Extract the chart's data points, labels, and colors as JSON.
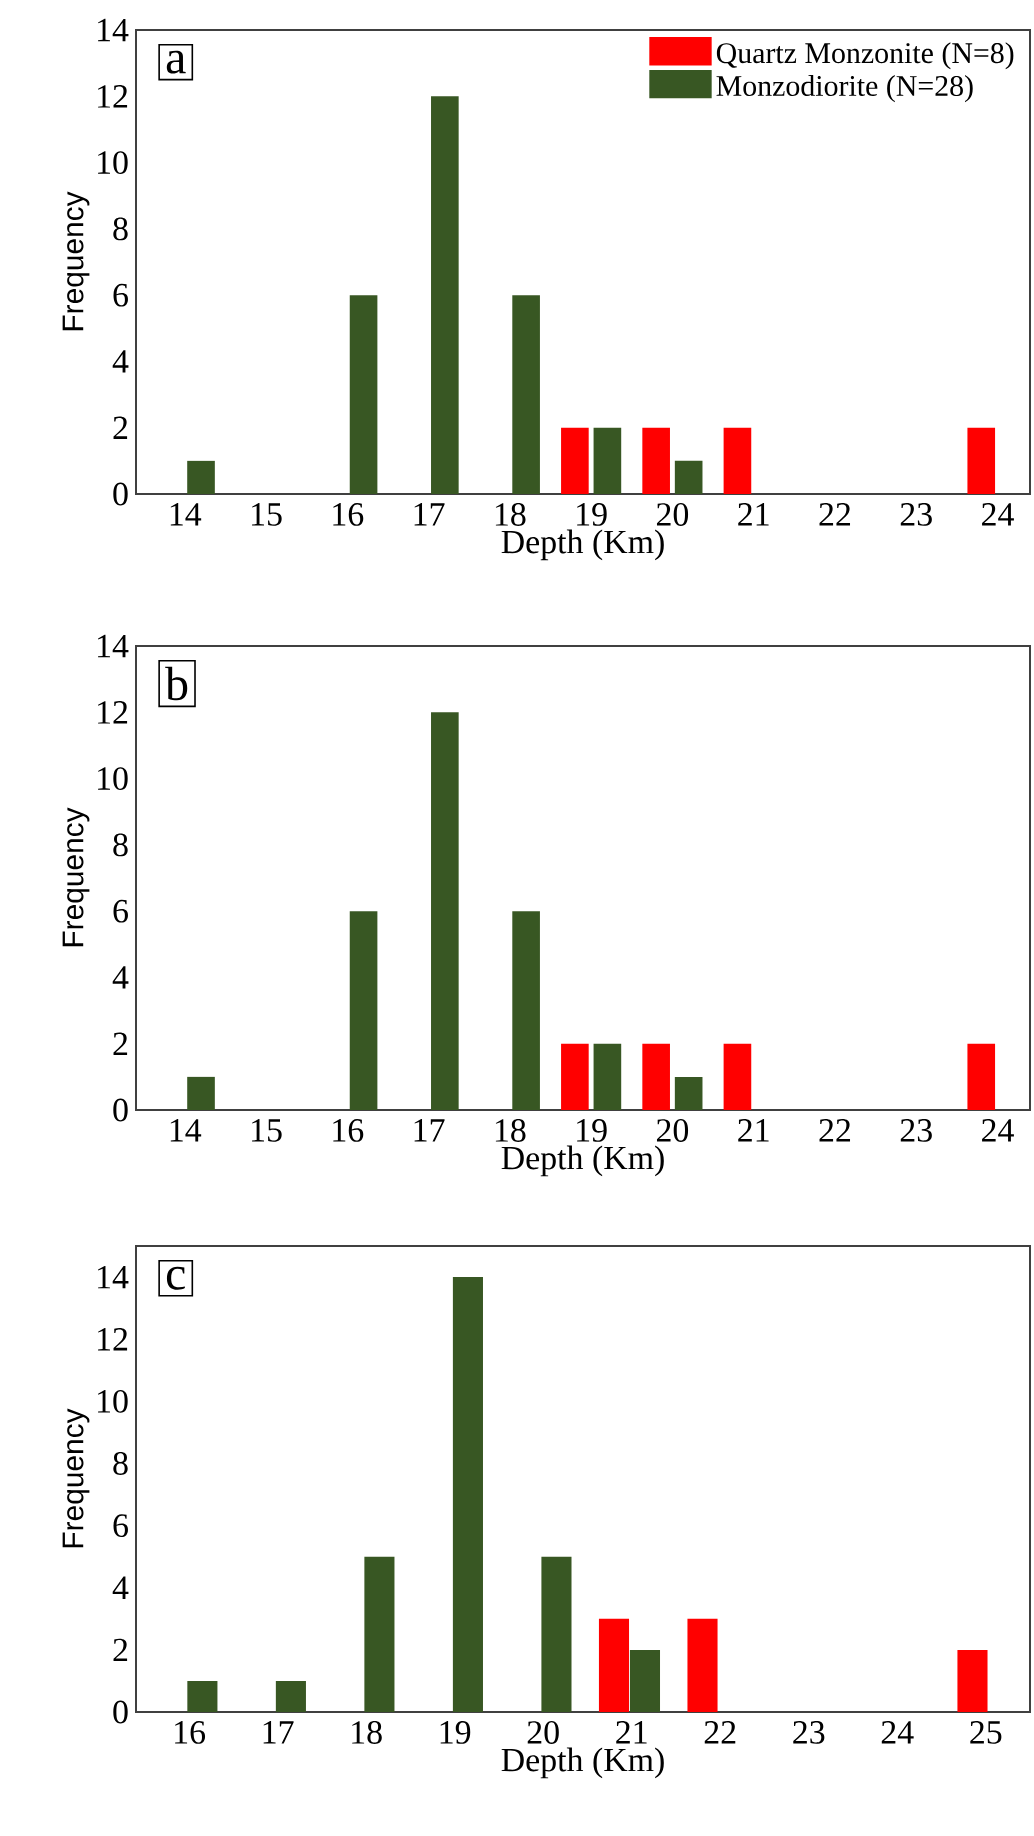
{
  "chart_data": [
    {
      "type": "bar",
      "title": "a",
      "xlabel": "Depth (Km)",
      "ylabel": "Frequency",
      "xlim": [
        13.4,
        24.4
      ],
      "xticks": [
        14,
        15,
        16,
        17,
        18,
        19,
        20,
        21,
        22,
        23,
        24
      ],
      "ylim": [
        0,
        14
      ],
      "yticks": [
        0,
        2,
        4,
        6,
        8,
        10,
        12,
        14
      ],
      "legend": "top right",
      "series": [
        {
          "name": "Quartz Monzonite (N=8)",
          "color": "#ff0000",
          "x": [
            18.8,
            19.8,
            20.8,
            23.8
          ],
          "values": [
            2,
            2,
            2,
            2
          ]
        },
        {
          "name": "Monzodiorite (N=28)",
          "color": "#385723",
          "x": [
            14.2,
            16.2,
            17.2,
            18.2,
            19.2,
            20.2
          ],
          "values": [
            1,
            6,
            12,
            6,
            2,
            1
          ]
        }
      ]
    },
    {
      "type": "bar",
      "title": "b",
      "xlabel": "Depth (Km)",
      "ylabel": "Frequency",
      "xlim": [
        13.4,
        24.4
      ],
      "xticks": [
        14,
        15,
        16,
        17,
        18,
        19,
        20,
        21,
        22,
        23,
        24
      ],
      "ylim": [
        0,
        14
      ],
      "yticks": [
        0,
        2,
        4,
        6,
        8,
        10,
        12,
        14
      ],
      "series": [
        {
          "color": "#ff0000",
          "x": [
            18.8,
            19.8,
            20.8,
            23.8
          ],
          "values": [
            2,
            2,
            2,
            2
          ]
        },
        {
          "color": "#385723",
          "x": [
            14.2,
            16.2,
            17.2,
            18.2,
            19.2,
            20.2
          ],
          "values": [
            1,
            6,
            12,
            6,
            2,
            1
          ]
        }
      ]
    },
    {
      "type": "bar",
      "title": "c",
      "xlabel": "Depth (Km)",
      "ylabel": "Frequency",
      "xlim": [
        15.4,
        25.5
      ],
      "xticks": [
        16,
        17,
        18,
        19,
        20,
        21,
        22,
        23,
        24,
        25
      ],
      "ylim": [
        0,
        15
      ],
      "yticks": [
        0,
        2,
        4,
        6,
        8,
        10,
        12,
        14
      ],
      "series": [
        {
          "color": "#ff0000",
          "x": [
            20.8,
            21.8,
            24.85
          ],
          "values": [
            3,
            3,
            2
          ]
        },
        {
          "color": "#385723",
          "x": [
            16.15,
            17.15,
            18.15,
            19.15,
            20.15,
            21.15
          ],
          "values": [
            1,
            1,
            5,
            14,
            5,
            2
          ]
        }
      ]
    }
  ]
}
